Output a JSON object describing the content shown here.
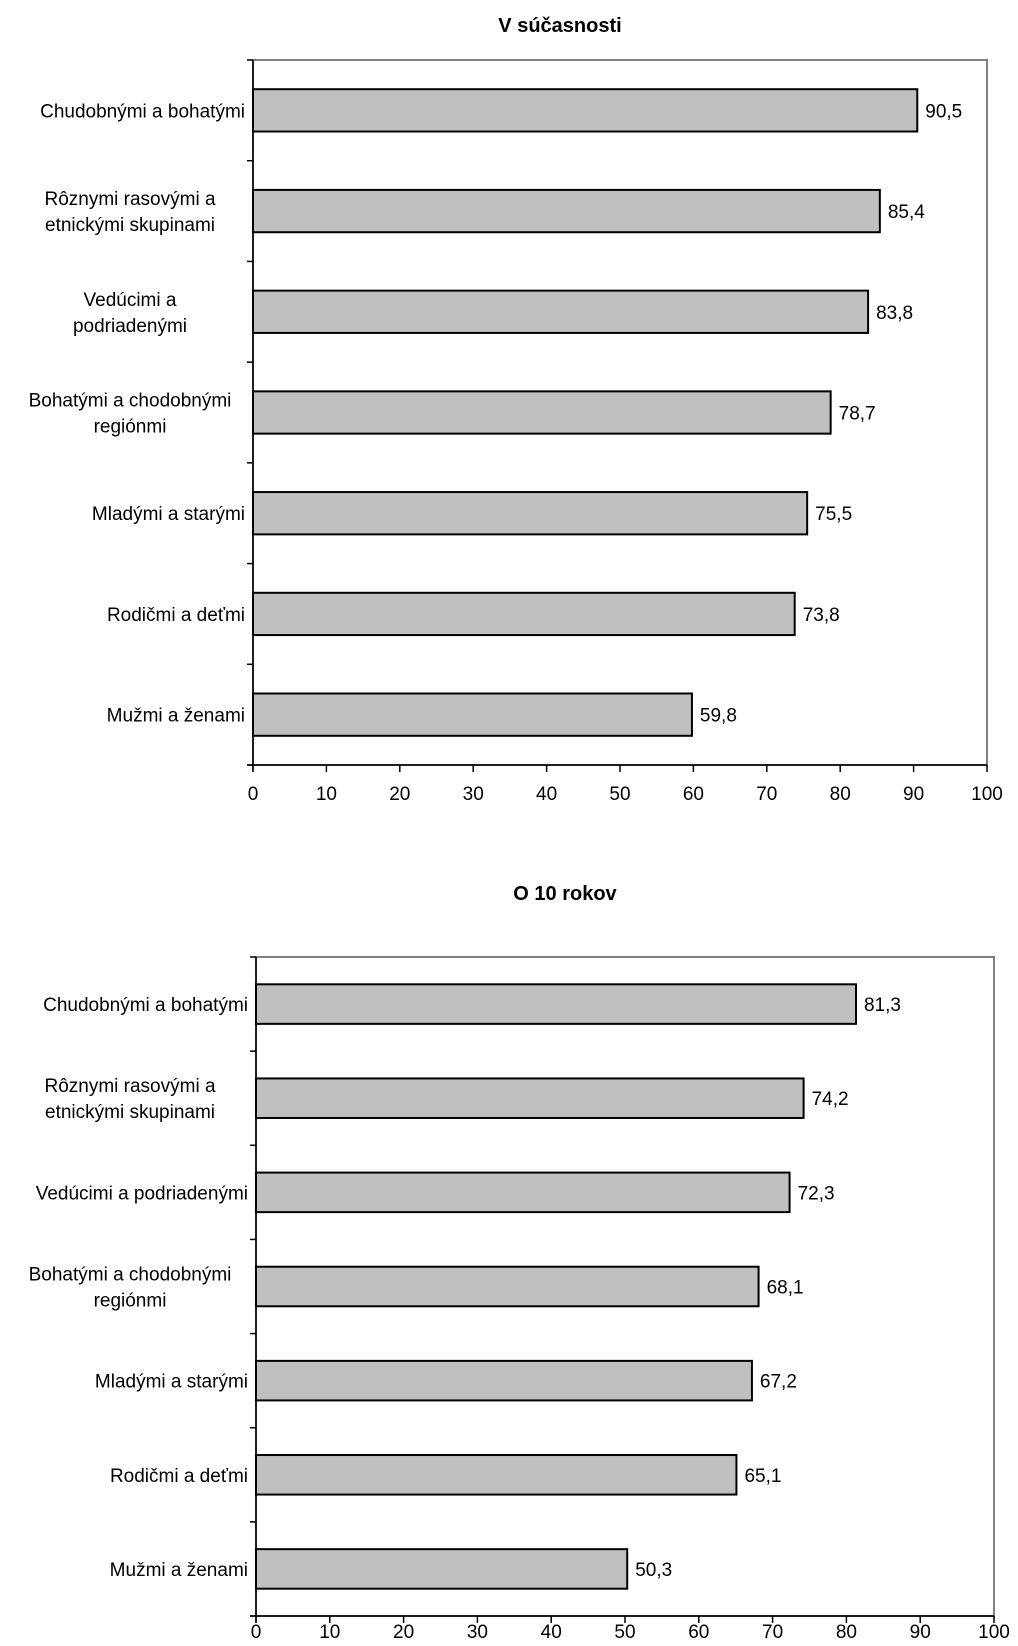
{
  "colors": {
    "bar_fill": "#c0c0c0",
    "bar_stroke": "#000000",
    "frame": "#808080",
    "background": "#ffffff"
  },
  "chart_data": [
    {
      "type": "bar",
      "orientation": "horizontal",
      "title": "V súčasnosti",
      "xlabel": "",
      "ylabel": "",
      "xlim": [
        0,
        100
      ],
      "xticks": [
        "0",
        "10",
        "20",
        "30",
        "40",
        "50",
        "60",
        "70",
        "80",
        "90",
        "100"
      ],
      "grid": false,
      "legend": "none",
      "categories": [
        [
          "Chudobnými a bohatými"
        ],
        [
          "Rôznymi rasovými a",
          "etnickými skupinami"
        ],
        [
          "Vedúcimi a",
          "podriadenými"
        ],
        [
          "Bohatými a chodobnými",
          "regiónmi"
        ],
        [
          "Mladými a starými"
        ],
        [
          "Rodičmi a deťmi"
        ],
        [
          "Mužmi a ženami"
        ]
      ],
      "values": [
        90.5,
        85.4,
        83.8,
        78.7,
        75.5,
        73.8,
        59.8
      ],
      "data_labels": [
        "90,5",
        "85,4",
        "83,8",
        "78,7",
        "75,5",
        "73,8",
        "59,8"
      ]
    },
    {
      "type": "bar",
      "orientation": "horizontal",
      "title": "O 10 rokov",
      "xlabel": "",
      "ylabel": "",
      "xlim": [
        0,
        100
      ],
      "xticks": [
        "0",
        "10",
        "20",
        "30",
        "40",
        "50",
        "60",
        "70",
        "80",
        "90",
        "100"
      ],
      "grid": false,
      "legend": "none",
      "categories": [
        [
          "Chudobnými a bohatými"
        ],
        [
          "Rôznymi rasovými a",
          "etnickými skupinami"
        ],
        [
          "Vedúcimi a podriadenými"
        ],
        [
          "Bohatými a chodobnými",
          "regiónmi"
        ],
        [
          "Mladými a starými"
        ],
        [
          "Rodičmi a deťmi"
        ],
        [
          "Mužmi a ženami"
        ]
      ],
      "values": [
        81.3,
        74.2,
        72.3,
        68.1,
        67.2,
        65.1,
        50.3
      ],
      "data_labels": [
        "81,3",
        "74,2",
        "72,3",
        "68,1",
        "67,2",
        "65,1",
        "50,3"
      ]
    }
  ]
}
